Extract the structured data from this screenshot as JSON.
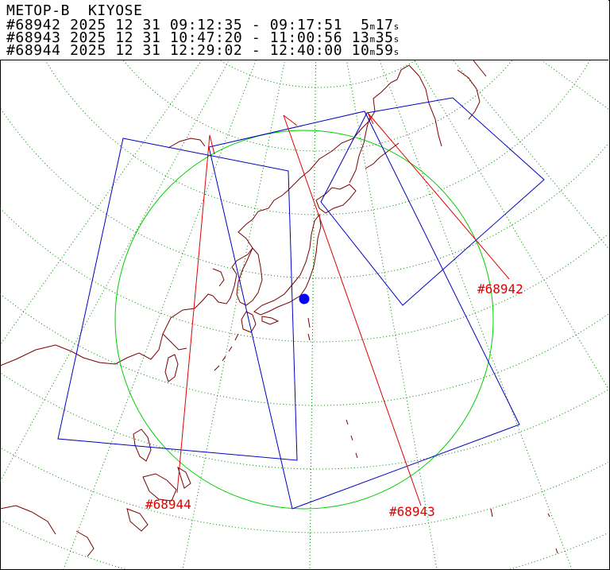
{
  "header": {
    "satellite": "METOP-B",
    "station": "KIYOSE",
    "passes": [
      {
        "id": "#68942",
        "date": "2025 12 31",
        "start": "09:12:35",
        "sep": "-",
        "end": "09:17:51",
        "dur_m": "5",
        "dur_s": "17"
      },
      {
        "id": "#68943",
        "date": "2025 12 31",
        "start": "10:47:20",
        "sep": "-",
        "end": "11:00:56",
        "dur_m": "13",
        "dur_s": "35"
      },
      {
        "id": "#68944",
        "date": "2025 12 31",
        "start": "12:29:02",
        "sep": "-",
        "end": "12:40:00",
        "dur_m": "10",
        "dur_s": "59"
      }
    ],
    "unit_m": "m",
    "unit_s": "s"
  },
  "map": {
    "station_marker": "station-dot",
    "colors": {
      "coast": "#7a0000",
      "grid": "#008000",
      "range_circle": "#00d000",
      "swath": "#0000c0",
      "ground_track": "#e00000",
      "station": "#0000ff"
    },
    "labels": {
      "p68942": "#68942",
      "p68943": "#68943",
      "p68944": "#68944"
    }
  }
}
